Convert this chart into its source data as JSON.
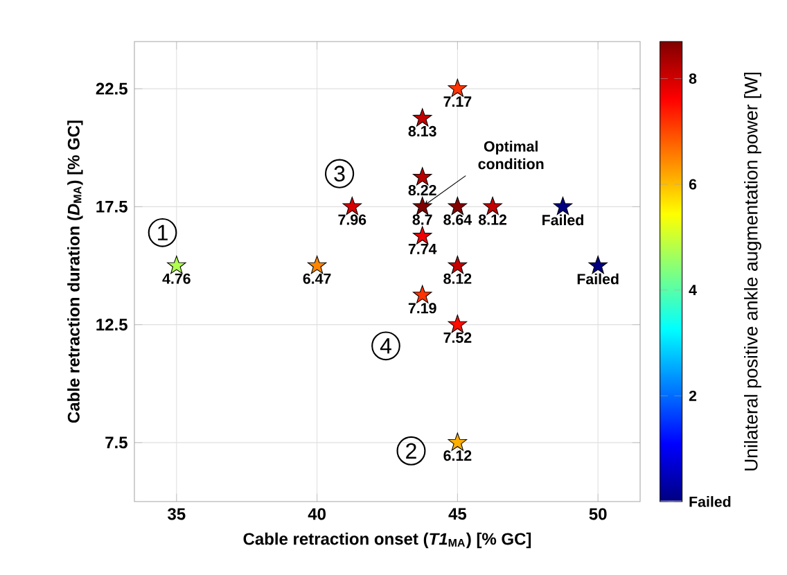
{
  "chart_data": {
    "type": "scatter",
    "xlabel": "Cable retraction onset (*T1*$_{MA}$) [% GC]",
    "ylabel": "Cable retraction duration (*D*$_{MA}$) [% GC]",
    "clabel": "Unilateral positive ankle augmentation power [W]",
    "x": [
      35,
      40,
      41.25,
      43.75,
      43.75,
      43.75,
      43.75,
      43.75,
      45,
      45,
      46.25,
      48.75,
      45,
      50,
      45,
      45
    ],
    "values": [
      15,
      15,
      17.5,
      21.25,
      18.75,
      17.5,
      16.25,
      13.75,
      22.5,
      17.5,
      17.5,
      17.5,
      15,
      15,
      12.5,
      7.5
    ],
    "cvalues": [
      4.76,
      6.47,
      7.96,
      8.13,
      8.22,
      8.7,
      7.74,
      7.19,
      7.17,
      8.64,
      8.12,
      0,
      8.12,
      0,
      7.52,
      6.12
    ],
    "xlim": [
      33.5,
      51.5
    ],
    "ylim": [
      5,
      24.5
    ],
    "xticks": [
      35,
      40,
      45,
      50
    ],
    "yticks": [
      7.5,
      12.5,
      17.5,
      22.5
    ],
    "clim": [
      0,
      8.7
    ],
    "cticks": [
      {
        "value": 0,
        "label": "Failed"
      },
      2,
      4,
      6,
      8
    ],
    "grid": true,
    "marker": "star",
    "annotations": [
      "1",
      "2",
      "3",
      "4",
      {
        "text": "Optimal condition",
        "x": 43.75,
        "y": 17.5
      },
      {
        "text": "4.76",
        "x": 35,
        "y": 15
      },
      {
        "text": "6.47",
        "x": 40,
        "y": 15
      },
      {
        "text": "7.96",
        "x": 41.25,
        "y": 17.5
      },
      {
        "text": "8.13",
        "x": 43.75,
        "y": 21.25
      },
      {
        "text": "8.22",
        "x": 43.75,
        "y": 18.75
      },
      {
        "text": "8.7",
        "x": 43.75,
        "y": 17.5
      },
      {
        "text": "7.74",
        "x": 43.75,
        "y": 16.25
      },
      {
        "text": "7.19",
        "x": 43.75,
        "y": 13.75
      },
      {
        "text": "7.17",
        "x": 45,
        "y": 22.5
      },
      {
        "text": "8.64",
        "x": 45,
        "y": 17.5
      },
      {
        "text": "8.12",
        "x": 46.25,
        "y": 17.5
      },
      {
        "text": "Failed",
        "x": 48.75,
        "y": 17.5
      },
      {
        "text": "8.12",
        "x": 45,
        "y": 15
      },
      {
        "text": "Failed",
        "x": 50,
        "y": 15
      },
      {
        "text": "7.52",
        "x": 45,
        "y": 12.5
      },
      {
        "text": "6.12",
        "x": 45,
        "y": 7.5
      }
    ]
  }
}
